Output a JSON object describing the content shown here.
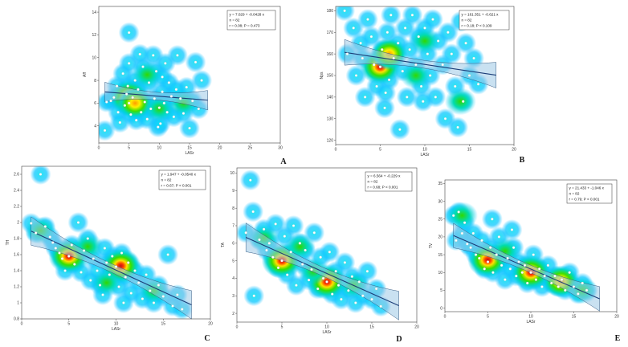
{
  "chart_data": [
    {
      "panel": "A",
      "type": "scatter",
      "xlabel": "LASr",
      "ylabel": "Aff",
      "xlim": [
        0,
        30
      ],
      "ylim": [
        2.5,
        14.5
      ],
      "xticks": [
        0,
        5,
        10,
        15,
        20,
        25,
        30
      ],
      "yticks": [
        4,
        6,
        8,
        10,
        12,
        14
      ],
      "stats": [
        "y = 7.029 + -0.0428 x",
        "n = 82",
        "r = 0.08; P = 0.473"
      ],
      "regression": {
        "intercept": 7.029,
        "slope": -0.0428,
        "x_range": [
          1,
          18
        ]
      },
      "hotspots": [
        [
          5,
          6.5,
          "hot"
        ],
        [
          6,
          6.0,
          "warm"
        ],
        [
          10,
          5.5,
          "mid"
        ],
        [
          14,
          6,
          "mid"
        ],
        [
          8,
          8.5,
          "mid"
        ]
      ],
      "points": [
        [
          1,
          3.6
        ],
        [
          1.3,
          6.1
        ],
        [
          2,
          6.2
        ],
        [
          2.5,
          6.5
        ],
        [
          3,
          7.5
        ],
        [
          3.2,
          5.2
        ],
        [
          3.5,
          4.3
        ],
        [
          4,
          8.6
        ],
        [
          4.3,
          5.8
        ],
        [
          4.6,
          6.8
        ],
        [
          5,
          12.2
        ],
        [
          5,
          9.5
        ],
        [
          5,
          6.0
        ],
        [
          5.3,
          5.0
        ],
        [
          5.6,
          6.5
        ],
        [
          6,
          8.0
        ],
        [
          6.2,
          4.5
        ],
        [
          6.5,
          7.2
        ],
        [
          7,
          5.2
        ],
        [
          7.3,
          9.2
        ],
        [
          7.6,
          6.1
        ],
        [
          8,
          4.6
        ],
        [
          8.3,
          7.8
        ],
        [
          8.6,
          5.5
        ],
        [
          9,
          10.2
        ],
        [
          9.2,
          6.4
        ],
        [
          9.5,
          8.8
        ],
        [
          9.8,
          3.9
        ],
        [
          10,
          5.6
        ],
        [
          10.2,
          4.2
        ],
        [
          10.5,
          7.0
        ],
        [
          10.8,
          6.0
        ],
        [
          11,
          9.5
        ],
        [
          11.3,
          5.2
        ],
        [
          11.6,
          7.8
        ],
        [
          12,
          6.6
        ],
        [
          12.4,
          4.8
        ],
        [
          13,
          10.2
        ],
        [
          13.5,
          6.4
        ],
        [
          14,
          5.1
        ],
        [
          14.5,
          7.4
        ],
        [
          15,
          3.8
        ],
        [
          15.5,
          6.2
        ],
        [
          16,
          9.6
        ],
        [
          16.5,
          5.5
        ],
        [
          17,
          8.0
        ],
        [
          6.8,
          10.3
        ],
        [
          4.8,
          7.5
        ],
        [
          10.5,
          8.3
        ],
        [
          12.8,
          7.2
        ]
      ]
    },
    {
      "panel": "B",
      "type": "scatter",
      "xlabel": "LASr",
      "ylabel": "Nps",
      "xlim": [
        0,
        20
      ],
      "ylim": [
        118,
        182
      ],
      "xticks": [
        0,
        5,
        10,
        15,
        20
      ],
      "yticks": [
        120,
        130,
        140,
        150,
        160,
        170,
        180
      ],
      "stats": [
        "y = 161.351 + -0.621 x",
        "n = 82",
        "r = 0.18; P < 0.109"
      ],
      "regression": {
        "intercept": 161.351,
        "slope": -0.621,
        "x_range": [
          1,
          18
        ]
      },
      "hotspots": [
        [
          5,
          154,
          "hot"
        ],
        [
          6,
          160,
          "warm"
        ],
        [
          10,
          166,
          "mid"
        ],
        [
          9,
          150,
          "mid"
        ],
        [
          14,
          138,
          "mid"
        ]
      ],
      "points": [
        [
          1,
          180
        ],
        [
          1.3,
          160
        ],
        [
          2,
          172
        ],
        [
          2.3,
          150
        ],
        [
          2.8,
          165
        ],
        [
          3,
          158
        ],
        [
          3.3,
          140
        ],
        [
          3.6,
          176
        ],
        [
          4,
          168
        ],
        [
          4.3,
          155
        ],
        [
          4.6,
          145
        ],
        [
          5,
          154
        ],
        [
          5.2,
          162
        ],
        [
          5.5,
          135
        ],
        [
          5.8,
          170
        ],
        [
          6,
          148
        ],
        [
          6.2,
          178
        ],
        [
          6.5,
          158
        ],
        [
          7,
          165
        ],
        [
          7.2,
          125
        ],
        [
          7.5,
          152
        ],
        [
          7.8,
          172
        ],
        [
          8,
          140
        ],
        [
          8.3,
          162
        ],
        [
          8.6,
          178
        ],
        [
          9,
          155
        ],
        [
          9.3,
          168
        ],
        [
          9.6,
          145
        ],
        [
          10,
          172
        ],
        [
          10.3,
          160
        ],
        [
          10.6,
          150
        ],
        [
          10.9,
          176
        ],
        [
          11.2,
          140
        ],
        [
          11.5,
          166
        ],
        [
          12,
          155
        ],
        [
          12.3,
          130
        ],
        [
          12.6,
          170
        ],
        [
          13,
          160
        ],
        [
          13.4,
          145
        ],
        [
          13.7,
          126
        ],
        [
          14,
          175
        ],
        [
          14.3,
          138
        ],
        [
          14.6,
          165
        ],
        [
          15,
          150
        ],
        [
          15.5,
          158
        ],
        [
          16,
          146
        ],
        [
          5.6,
          142
        ],
        [
          9.8,
          138
        ]
      ]
    },
    {
      "panel": "C",
      "type": "scatter",
      "xlabel": "LASr",
      "ylabel": "TH",
      "xlim": [
        0,
        20
      ],
      "ylim": [
        0.8,
        2.7
      ],
      "xticks": [
        0,
        5,
        10,
        15,
        20
      ],
      "yticks": [
        0.8,
        1.0,
        1.2,
        1.4,
        1.6,
        1.8,
        2.0,
        2.2,
        2.4,
        2.6
      ],
      "stats": [
        "y = 1.947 + -0.0540 x",
        "n = 82",
        "r = 0.67; P < 0.001"
      ],
      "regression": {
        "intercept": 1.947,
        "slope": -0.054,
        "x_range": [
          1,
          18
        ]
      },
      "hotspots": [
        [
          5,
          1.58,
          "hot"
        ],
        [
          10.5,
          1.46,
          "hot"
        ],
        [
          7,
          1.7,
          "mid"
        ],
        [
          9,
          1.25,
          "mid"
        ],
        [
          2,
          1.9,
          "mid"
        ],
        [
          14,
          1.15,
          "mid"
        ]
      ],
      "points": [
        [
          1,
          1.99
        ],
        [
          1.5,
          1.87
        ],
        [
          2,
          2.6
        ],
        [
          2.5,
          1.95
        ],
        [
          3,
          1.82
        ],
        [
          3.3,
          1.75
        ],
        [
          3.6,
          1.68
        ],
        [
          4,
          1.62
        ],
        [
          4.3,
          1.55
        ],
        [
          4.6,
          1.4
        ],
        [
          5,
          1.58
        ],
        [
          5.3,
          1.72
        ],
        [
          5.6,
          1.48
        ],
        [
          6,
          2.0
        ],
        [
          6.3,
          1.38
        ],
        [
          6.6,
          1.65
        ],
        [
          7,
          1.8
        ],
        [
          7.3,
          1.28
        ],
        [
          7.6,
          1.55
        ],
        [
          8,
          1.4
        ],
        [
          8.3,
          1.22
        ],
        [
          8.6,
          1.1
        ],
        [
          9,
          1.5
        ],
        [
          9.3,
          1.35
        ],
        [
          9.6,
          1.58
        ],
        [
          10,
          1.45
        ],
        [
          10.3,
          1.2
        ],
        [
          10.6,
          1.62
        ],
        [
          11,
          1.32
        ],
        [
          11.3,
          1.5
        ],
        [
          11.6,
          1.12
        ],
        [
          12,
          1.4
        ],
        [
          12.4,
          1.25
        ],
        [
          12.8,
          1.05
        ],
        [
          13.2,
          1.35
        ],
        [
          13.6,
          1.15
        ],
        [
          14,
          1.0
        ],
        [
          14.5,
          1.22
        ],
        [
          15,
          1.08
        ],
        [
          15.5,
          1.6
        ],
        [
          16,
          0.96
        ],
        [
          16.5,
          1.1
        ],
        [
          17,
          0.92
        ],
        [
          8.8,
          1.68
        ],
        [
          10.8,
          1.0
        ]
      ]
    },
    {
      "panel": "D",
      "type": "scatter",
      "xlabel": "LASr",
      "ylabel": "TA",
      "xlim": [
        0,
        20
      ],
      "ylim": [
        1.5,
        10.3
      ],
      "xticks": [
        0,
        5,
        10,
        15,
        20
      ],
      "yticks": [
        2,
        3,
        4,
        5,
        6,
        7,
        8,
        9,
        10
      ],
      "stats": [
        "y = 6.564 + -0.229 x",
        "n = 82",
        "r = 0.68; P < 0.001"
      ],
      "regression": {
        "intercept": 6.564,
        "slope": -0.229,
        "x_range": [
          1,
          18
        ]
      },
      "hotspots": [
        [
          5,
          5.0,
          "hot"
        ],
        [
          10,
          3.8,
          "hot"
        ],
        [
          7,
          5.8,
          "mid"
        ],
        [
          13,
          3.6,
          "mid"
        ],
        [
          3,
          6.3,
          "mid"
        ],
        [
          8.5,
          4.4,
          "mid"
        ]
      ],
      "points": [
        [
          1,
          6.6
        ],
        [
          1.5,
          9.6
        ],
        [
          1.8,
          7.8
        ],
        [
          1.9,
          3.0
        ],
        [
          2.5,
          6.2
        ],
        [
          3,
          6.8
        ],
        [
          3.3,
          5.6
        ],
        [
          3.6,
          6.0
        ],
        [
          4,
          5.2
        ],
        [
          4.3,
          7.1
        ],
        [
          4.6,
          4.6
        ],
        [
          5,
          5.0
        ],
        [
          5.3,
          6.4
        ],
        [
          5.6,
          4.2
        ],
        [
          6,
          5.5
        ],
        [
          6.3,
          7.0
        ],
        [
          6.6,
          3.6
        ],
        [
          7,
          6.0
        ],
        [
          7.3,
          4.8
        ],
        [
          7.6,
          5.6
        ],
        [
          8,
          3.9
        ],
        [
          8.3,
          4.5
        ],
        [
          8.6,
          6.6
        ],
        [
          9,
          3.4
        ],
        [
          9.3,
          5.2
        ],
        [
          9.6,
          4.0
        ],
        [
          10,
          3.8
        ],
        [
          10.3,
          5.5
        ],
        [
          10.6,
          3.1
        ],
        [
          11,
          4.4
        ],
        [
          11.3,
          3.6
        ],
        [
          11.6,
          2.8
        ],
        [
          12,
          4.9
        ],
        [
          12.4,
          3.3
        ],
        [
          12.8,
          4.1
        ],
        [
          13.2,
          2.6
        ],
        [
          13.6,
          3.8
        ],
        [
          14,
          3.0
        ],
        [
          14.5,
          4.4
        ],
        [
          15,
          2.8
        ],
        [
          15.5,
          3.4
        ],
        [
          16,
          2.4
        ]
      ]
    },
    {
      "panel": "E",
      "type": "scatter",
      "xlabel": "LASr",
      "ylabel": "TV",
      "xlim": [
        0,
        20
      ],
      "ylim": [
        -1,
        36
      ],
      "xticks": [
        0,
        5,
        10,
        15,
        20
      ],
      "yticks": [
        0,
        5,
        10,
        15,
        20,
        25,
        30,
        35
      ],
      "stats": [
        "y = 21.433 + -1.046 x",
        "n = 82",
        "r = 0.79; P < 0.001"
      ],
      "regression": {
        "intercept": 21.433,
        "slope": -1.046,
        "x_range": [
          1,
          18
        ]
      },
      "hotspots": [
        [
          5,
          13.5,
          "hot"
        ],
        [
          10,
          10.0,
          "hot"
        ],
        [
          13.5,
          7.5,
          "warm"
        ],
        [
          2,
          26,
          "mid"
        ],
        [
          7,
          16,
          "mid"
        ],
        [
          16,
          5,
          "mid"
        ]
      ],
      "points": [
        [
          1,
          26
        ],
        [
          1.3,
          19
        ],
        [
          1.6,
          27
        ],
        [
          2,
          21
        ],
        [
          2.3,
          24
        ],
        [
          2.6,
          18
        ],
        [
          3,
          17
        ],
        [
          3.3,
          21
        ],
        [
          3.6,
          15
        ],
        [
          4,
          14
        ],
        [
          4.3,
          19
        ],
        [
          4.6,
          11
        ],
        [
          5,
          13
        ],
        [
          5.3,
          17
        ],
        [
          5.6,
          10
        ],
        [
          6,
          15
        ],
        [
          6.3,
          20
        ],
        [
          6.6,
          12
        ],
        [
          7,
          8
        ],
        [
          7.3,
          14
        ],
        [
          7.6,
          11
        ],
        [
          8,
          17
        ],
        [
          8.3,
          9
        ],
        [
          8.6,
          13
        ],
        [
          9,
          10
        ],
        [
          9.3,
          12
        ],
        [
          9.6,
          7
        ],
        [
          10,
          10
        ],
        [
          10.3,
          15
        ],
        [
          10.6,
          8
        ],
        [
          11,
          11
        ],
        [
          11.3,
          6
        ],
        [
          11.6,
          9
        ],
        [
          12,
          12
        ],
        [
          12.4,
          7
        ],
        [
          12.8,
          9
        ],
        [
          13.2,
          6
        ],
        [
          13.6,
          8
        ],
        [
          14,
          5
        ],
        [
          14.5,
          10
        ],
        [
          15,
          6
        ],
        [
          15.5,
          4
        ],
        [
          16,
          7
        ],
        [
          16.5,
          5
        ],
        [
          5.5,
          25
        ],
        [
          7.8,
          22
        ]
      ]
    }
  ]
}
